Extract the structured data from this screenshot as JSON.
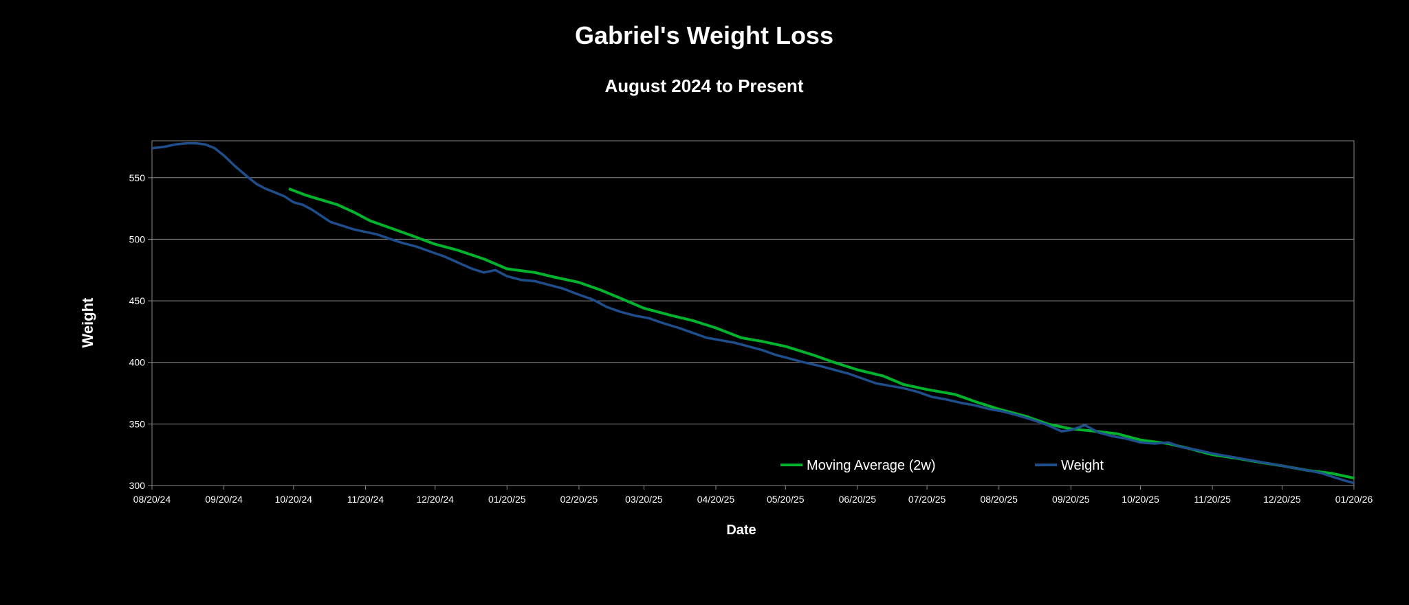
{
  "chart_data": {
    "type": "line",
    "title": "Gabriel's Weight Loss",
    "subtitle": "August 2024 to Present",
    "xlabel": "Date",
    "ylabel": "Weight",
    "ylim": [
      300,
      580
    ],
    "y_ticks": [
      300,
      350,
      400,
      450,
      500,
      550
    ],
    "x_range": [
      "2024-08-20",
      "2026-01-20"
    ],
    "x_ticks": [
      {
        "date": "2024-08-20",
        "label": "08/20/24"
      },
      {
        "date": "2024-09-20",
        "label": "09/20/24"
      },
      {
        "date": "2024-10-20",
        "label": "10/20/24"
      },
      {
        "date": "2024-11-20",
        "label": "11/20/24"
      },
      {
        "date": "2024-12-20",
        "label": "12/20/24"
      },
      {
        "date": "2025-01-20",
        "label": "01/20/25"
      },
      {
        "date": "2025-02-20",
        "label": "02/20/25"
      },
      {
        "date": "2025-03-20",
        "label": "03/20/25"
      },
      {
        "date": "2025-04-20",
        "label": "04/20/25"
      },
      {
        "date": "2025-05-20",
        "label": "05/20/25"
      },
      {
        "date": "2025-06-20",
        "label": "06/20/25"
      },
      {
        "date": "2025-07-20",
        "label": "07/20/25"
      },
      {
        "date": "2025-08-20",
        "label": "08/20/25"
      },
      {
        "date": "2025-09-20",
        "label": "09/20/25"
      },
      {
        "date": "2025-10-20",
        "label": "10/20/25"
      },
      {
        "date": "2025-11-20",
        "label": "11/20/25"
      },
      {
        "date": "2025-12-20",
        "label": "12/20/25"
      },
      {
        "date": "2026-01-20",
        "label": "01/20/26"
      }
    ],
    "grid": true,
    "legend_position": "bottom-right",
    "series": [
      {
        "name": "Moving Average (2w)",
        "color": "#00b32c",
        "x": [
          "2024-10-18",
          "2024-10-25",
          "2024-11-01",
          "2024-11-08",
          "2024-11-15",
          "2024-11-22",
          "2024-12-01",
          "2024-12-10",
          "2024-12-20",
          "2024-12-30",
          "2025-01-10",
          "2025-01-20",
          "2025-02-01",
          "2025-02-10",
          "2025-02-20",
          "2025-03-01",
          "2025-03-10",
          "2025-03-20",
          "2025-04-01",
          "2025-04-10",
          "2025-04-20",
          "2025-05-01",
          "2025-05-10",
          "2025-05-20",
          "2025-06-01",
          "2025-06-10",
          "2025-06-20",
          "2025-07-01",
          "2025-07-10",
          "2025-07-20",
          "2025-08-01",
          "2025-08-10",
          "2025-08-20",
          "2025-09-01",
          "2025-09-10",
          "2025-09-20",
          "2025-10-01",
          "2025-10-10",
          "2025-10-20",
          "2025-11-01",
          "2025-11-10",
          "2025-11-20",
          "2025-12-01",
          "2025-12-10",
          "2025-12-20",
          "2026-01-01",
          "2026-01-10",
          "2026-01-20"
        ],
        "y": [
          541,
          536,
          532,
          528,
          522,
          515,
          509,
          503,
          496,
          491,
          484,
          476,
          473,
          469,
          465,
          459,
          452,
          444,
          438,
          434,
          428,
          420,
          417,
          413,
          406,
          400,
          394,
          389,
          382,
          378,
          374,
          368,
          362,
          356,
          350,
          346,
          344,
          342,
          337,
          334,
          330,
          325,
          322,
          319,
          316,
          312,
          310,
          306
        ]
      },
      {
        "name": "Weight",
        "color": "#1f4e8c",
        "x": [
          "2024-08-20",
          "2024-08-25",
          "2024-08-30",
          "2024-09-04",
          "2024-09-08",
          "2024-09-12",
          "2024-09-16",
          "2024-09-20",
          "2024-09-25",
          "2024-09-30",
          "2024-10-04",
          "2024-10-08",
          "2024-10-12",
          "2024-10-16",
          "2024-10-20",
          "2024-10-24",
          "2024-10-28",
          "2024-11-01",
          "2024-11-05",
          "2024-11-10",
          "2024-11-15",
          "2024-11-20",
          "2024-11-25",
          "2024-12-01",
          "2024-12-06",
          "2024-12-12",
          "2024-12-18",
          "2024-12-24",
          "2024-12-30",
          "2025-01-05",
          "2025-01-10",
          "2025-01-15",
          "2025-01-20",
          "2025-01-26",
          "2025-02-01",
          "2025-02-07",
          "2025-02-13",
          "2025-02-20",
          "2025-02-26",
          "2025-03-04",
          "2025-03-10",
          "2025-03-16",
          "2025-03-22",
          "2025-03-28",
          "2025-04-04",
          "2025-04-10",
          "2025-04-16",
          "2025-04-22",
          "2025-04-28",
          "2025-05-04",
          "2025-05-10",
          "2025-05-16",
          "2025-05-22",
          "2025-05-28",
          "2025-06-04",
          "2025-06-10",
          "2025-06-16",
          "2025-06-22",
          "2025-06-28",
          "2025-07-04",
          "2025-07-10",
          "2025-07-16",
          "2025-07-22",
          "2025-07-28",
          "2025-08-04",
          "2025-08-10",
          "2025-08-16",
          "2025-08-22",
          "2025-08-28",
          "2025-09-04",
          "2025-09-10",
          "2025-09-16",
          "2025-09-20",
          "2025-09-26",
          "2025-10-02",
          "2025-10-08",
          "2025-10-14",
          "2025-10-20",
          "2025-10-26",
          "2025-11-01",
          "2025-11-07",
          "2025-11-13",
          "2025-11-20",
          "2025-11-26",
          "2025-12-02",
          "2025-12-08",
          "2025-12-14",
          "2025-12-20",
          "2025-12-26",
          "2026-01-01",
          "2026-01-06",
          "2026-01-11",
          "2026-01-16",
          "2026-01-20"
        ],
        "y": [
          574,
          575,
          577,
          578,
          578,
          577,
          574,
          568,
          559,
          551,
          545,
          541,
          538,
          535,
          530,
          528,
          524,
          519,
          514,
          511,
          508,
          506,
          504,
          500,
          497,
          494,
          490,
          486,
          481,
          476,
          473,
          475,
          470,
          467,
          466,
          463,
          460,
          455,
          451,
          445,
          441,
          438,
          436,
          432,
          428,
          424,
          420,
          418,
          416,
          413,
          410,
          406,
          403,
          400,
          397,
          394,
          391,
          387,
          383,
          381,
          379,
          376,
          372,
          370,
          367,
          365,
          362,
          360,
          357,
          353,
          349,
          344,
          345,
          349,
          343,
          340,
          338,
          335,
          334,
          335,
          331,
          329,
          326,
          324,
          322,
          320,
          318,
          316,
          314,
          312,
          310,
          307,
          304,
          302
        ]
      }
    ]
  }
}
